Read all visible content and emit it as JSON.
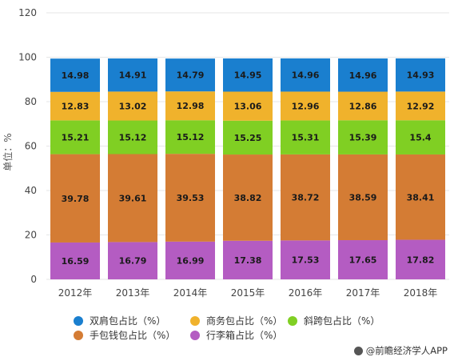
{
  "chart_data": {
    "type": "bar",
    "stacked": true,
    "categories": [
      "2012年",
      "2013年",
      "2014年",
      "2015年",
      "2016年",
      "2017年",
      "2018年"
    ],
    "ylabel": "单位：%",
    "ylim": [
      0,
      120
    ],
    "yticks": [
      "0",
      "20",
      "40",
      "60",
      "80",
      "100",
      "120"
    ],
    "grid": true,
    "legend_position": "bottom",
    "series": [
      {
        "name": "行李箱占比（%）",
        "color": "#b45cc2",
        "values": [
          16.59,
          16.79,
          16.99,
          17.38,
          17.53,
          17.65,
          17.82
        ],
        "labels": [
          "16.59",
          "16.79",
          "16.99",
          "17.38",
          "17.53",
          "17.65",
          "17.82"
        ]
      },
      {
        "name": "手包钱包占比（%）",
        "color": "#d47c34",
        "values": [
          39.78,
          39.61,
          39.53,
          38.82,
          38.72,
          38.59,
          38.41
        ],
        "labels": [
          "39.78",
          "39.61",
          "39.53",
          "38.82",
          "38.72",
          "38.59",
          "38.41"
        ]
      },
      {
        "name": "斜跨包占比（%）",
        "color": "#80cf23",
        "values": [
          15.21,
          15.12,
          15.12,
          15.25,
          15.31,
          15.39,
          15.4
        ],
        "labels": [
          "15.21",
          "15.12",
          "15.12",
          "15.25",
          "15.31",
          "15.39",
          "15.4"
        ]
      },
      {
        "name": "商务包占比（%）",
        "color": "#f0b22c",
        "values": [
          12.83,
          13.02,
          12.98,
          13.06,
          12.96,
          12.86,
          12.92
        ],
        "labels": [
          "12.83",
          "13.02",
          "12.98",
          "13.06",
          "12.96",
          "12.86",
          "12.92"
        ]
      },
      {
        "name": "双肩包占比（%）",
        "color": "#1a7fcf",
        "values": [
          14.98,
          14.91,
          14.79,
          14.95,
          14.96,
          14.96,
          14.93
        ],
        "labels": [
          "14.98",
          "14.91",
          "14.79",
          "14.95",
          "14.96",
          "14.96",
          "14.93"
        ]
      }
    ]
  },
  "legend": [
    {
      "label": "双肩包占比（%）",
      "color": "#1a7fcf"
    },
    {
      "label": "商务包占比（%）",
      "color": "#f0b22c"
    },
    {
      "label": "斜跨包占比（%）",
      "color": "#80cf23"
    },
    {
      "label": "手包钱包占比（%）",
      "color": "#d47c34"
    },
    {
      "label": "行李箱占比（%）",
      "color": "#b45cc2"
    }
  ],
  "source": "@前瞻经济学人APP"
}
